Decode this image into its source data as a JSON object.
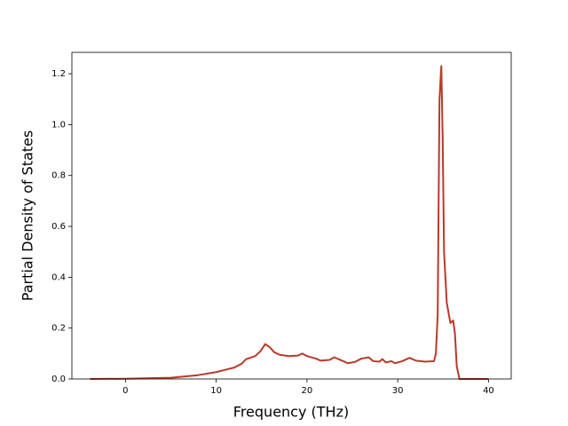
{
  "chart_data": {
    "type": "line",
    "xlabel": "Frequency (THz)",
    "ylabel": "Partial Density of States",
    "x": [
      -3.9,
      0,
      5,
      8,
      10,
      12,
      12.8,
      13.3,
      14.3,
      14.9,
      15.4,
      15.9,
      16.4,
      17,
      18,
      19,
      19.5,
      20,
      21,
      21.5,
      22.5,
      23,
      24,
      24.5,
      25.3,
      26,
      26.8,
      27.3,
      28,
      28.3,
      28.7,
      29.3,
      29.7,
      30.5,
      31.3,
      32,
      33,
      34,
      34.2,
      34.4,
      34.6,
      34.8,
      34.95,
      35.1,
      35.4,
      35.8,
      36.1,
      36.3,
      36.5,
      36.8,
      40.0
    ],
    "series": [
      {
        "color": "#b83a2a",
        "values": [
          0,
          0.001,
          0.005,
          0.015,
          0.027,
          0.045,
          0.06,
          0.078,
          0.09,
          0.11,
          0.137,
          0.125,
          0.105,
          0.095,
          0.09,
          0.092,
          0.1,
          0.09,
          0.08,
          0.072,
          0.075,
          0.085,
          0.07,
          0.062,
          0.067,
          0.08,
          0.085,
          0.07,
          0.068,
          0.078,
          0.065,
          0.07,
          0.062,
          0.07,
          0.083,
          0.072,
          0.068,
          0.07,
          0.1,
          0.25,
          1.1,
          1.23,
          0.95,
          0.5,
          0.3,
          0.22,
          0.23,
          0.18,
          0.05,
          0,
          0
        ]
      }
    ],
    "xlim": [
      -5.9,
      42.5
    ],
    "ylim": [
      0,
      1.284
    ],
    "xticks": [
      0,
      10,
      20,
      30,
      40
    ],
    "yticks": [
      {
        "value": 0,
        "label": "0.0"
      },
      0.2,
      0.4,
      0.6,
      0.8,
      {
        "value": 1,
        "label": "1.0"
      },
      1.2
    ]
  }
}
